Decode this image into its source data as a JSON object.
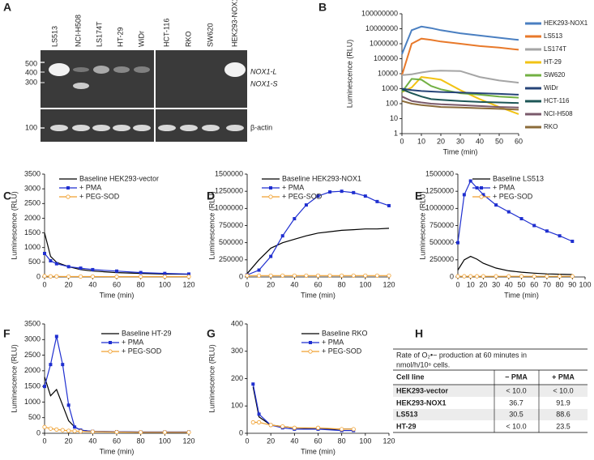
{
  "panel_labels": [
    "A",
    "B",
    "C",
    "D",
    "E",
    "F",
    "G",
    "H"
  ],
  "gel": {
    "lanes": [
      "LS513",
      "NCI-H508",
      "LS174T",
      "HT-29",
      "WiDr",
      "HCT-116",
      "RKO",
      "SW620",
      "HEK293-NOX1"
    ],
    "size_labels": [
      "500",
      "400",
      "300",
      "100"
    ],
    "band_labels": [
      "NOX1-L",
      "NOX1-S",
      "β-actin"
    ]
  },
  "chart_data": [
    {
      "type": "line",
      "log_scale": true,
      "xlabel": "Time (min)",
      "ylabel": "Luminescence (RLU)",
      "legend": "right",
      "x": [
        0,
        5,
        10,
        15,
        20,
        30,
        40,
        50,
        60
      ],
      "xlim": [
        0,
        60
      ],
      "xticks": [
        0,
        10,
        20,
        30,
        40,
        50,
        60
      ],
      "ylim": [
        1,
        100000000
      ],
      "yticks": [
        1,
        10,
        100,
        1000,
        10000,
        100000,
        1000000,
        10000000,
        100000000
      ],
      "series": [
        {
          "name": "HEK293-NOX1",
          "color": "#4a7fc1",
          "marker": null,
          "values": [
            200000,
            8000000,
            14000000,
            11000000,
            8000000,
            5000000,
            3500000,
            2500000,
            1800000
          ]
        },
        {
          "name": "LS513",
          "color": "#e8792a",
          "marker": null,
          "values": [
            8000,
            1000000,
            2200000,
            1800000,
            1400000,
            1000000,
            700000,
            550000,
            400000
          ]
        },
        {
          "name": "LS174T",
          "color": "#a5a5a5",
          "marker": null,
          "values": [
            8000,
            9000,
            12000,
            15000,
            16000,
            15000,
            6000,
            3500,
            2500
          ]
        },
        {
          "name": "HT-29",
          "color": "#f2c314",
          "marker": null,
          "values": [
            600,
            1200,
            6000,
            5000,
            4000,
            800,
            200,
            60,
            20
          ]
        },
        {
          "name": "SW620",
          "color": "#72b043",
          "marker": null,
          "values": [
            600,
            4500,
            4000,
            1500,
            900,
            500,
            400,
            300,
            250
          ]
        },
        {
          "name": "WiDr",
          "color": "#264478",
          "marker": null,
          "values": [
            1000,
            800,
            700,
            650,
            600,
            550,
            500,
            450,
            400
          ]
        },
        {
          "name": "HCT-116",
          "color": "#1d5656",
          "marker": null,
          "values": [
            900,
            500,
            300,
            200,
            180,
            150,
            130,
            120,
            110
          ]
        },
        {
          "name": "NCI-H508",
          "color": "#7a5a6b",
          "marker": null,
          "values": [
            300,
            150,
            120,
            100,
            90,
            80,
            70,
            60,
            55
          ]
        },
        {
          "name": "RKO",
          "color": "#8b6b3a",
          "marker": null,
          "values": [
            150,
            100,
            80,
            70,
            60,
            55,
            50,
            45,
            40
          ]
        }
      ]
    },
    {
      "type": "line",
      "xlabel": "Time (min)",
      "ylabel": "Luminescence (RLU)",
      "legend": "upper left",
      "x": [
        0,
        5,
        10,
        20,
        30,
        40,
        60,
        80,
        100,
        120
      ],
      "xlim": [
        0,
        120
      ],
      "xticks": [
        0,
        20,
        40,
        60,
        80,
        100,
        120
      ],
      "ylim": [
        0,
        3500
      ],
      "yticks": [
        0,
        500,
        1000,
        1500,
        2000,
        2500,
        3000,
        3500
      ],
      "series": [
        {
          "name": "Baseline HEK293-vector",
          "color": "#000000",
          "marker": null,
          "values": [
            1500,
            700,
            500,
            350,
            250,
            200,
            150,
            120,
            100,
            90
          ]
        },
        {
          "name": "+ PMA",
          "color": "#1f2fd0",
          "marker": "square",
          "values": [
            800,
            550,
            450,
            350,
            300,
            250,
            200,
            150,
            120,
            100
          ]
        },
        {
          "name": "+ PEG-SOD",
          "color": "#f0a030",
          "marker": "open-circle",
          "values": [
            30,
            20,
            20,
            15,
            15,
            15,
            10,
            10,
            10,
            10
          ]
        }
      ]
    },
    {
      "type": "line",
      "xlabel": "Time (min)",
      "ylabel": "Luminescence (RLU)",
      "legend": "upper left",
      "x": [
        0,
        10,
        20,
        30,
        40,
        50,
        60,
        70,
        80,
        90,
        100,
        110,
        120
      ],
      "xlim": [
        0,
        120
      ],
      "xticks": [
        0,
        20,
        40,
        60,
        80,
        100,
        120
      ],
      "ylim": [
        0,
        1500000
      ],
      "yticks": [
        0,
        250000,
        500000,
        750000,
        1000000,
        1250000,
        1500000
      ],
      "series": [
        {
          "name": "Baseline HEK293-NOX1",
          "color": "#000000",
          "marker": null,
          "values": [
            50000,
            250000,
            420000,
            500000,
            550000,
            600000,
            640000,
            660000,
            680000,
            690000,
            700000,
            700000,
            710000
          ]
        },
        {
          "name": "+ PMA",
          "color": "#1f2fd0",
          "marker": "square",
          "values": [
            30000,
            100000,
            300000,
            600000,
            850000,
            1050000,
            1180000,
            1240000,
            1250000,
            1230000,
            1180000,
            1100000,
            1040000
          ]
        },
        {
          "name": "+ PEG-SOD",
          "color": "#f0a030",
          "marker": "open-circle",
          "values": [
            20000,
            20000,
            20000,
            20000,
            20000,
            20000,
            20000,
            20000,
            20000,
            20000,
            20000,
            20000,
            20000
          ]
        }
      ]
    },
    {
      "type": "line",
      "xlabel": "Time (min)",
      "ylabel": "Luminescence (RLU)",
      "legend": "upper left",
      "x": [
        0,
        5,
        10,
        15,
        20,
        30,
        40,
        50,
        60,
        70,
        80,
        90
      ],
      "xlim": [
        0,
        100
      ],
      "xticks": [
        0,
        10,
        20,
        30,
        40,
        50,
        60,
        70,
        80,
        90,
        100
      ],
      "ylim": [
        0,
        1500000
      ],
      "yticks": [
        0,
        250000,
        500000,
        750000,
        1000000,
        1250000,
        1500000
      ],
      "series": [
        {
          "name": "Baseline LS513",
          "color": "#000000",
          "marker": null,
          "values": [
            100000,
            250000,
            300000,
            260000,
            200000,
            130000,
            90000,
            70000,
            55000,
            45000,
            40000,
            35000
          ]
        },
        {
          "name": "+ PMA",
          "color": "#1f2fd0",
          "marker": "square",
          "values": [
            500000,
            1200000,
            1400000,
            1300000,
            1200000,
            1050000,
            950000,
            850000,
            750000,
            670000,
            600000,
            520000
          ]
        },
        {
          "name": "+ PEG-SOD",
          "color": "#f0a030",
          "marker": "open-circle",
          "values": [
            10000,
            10000,
            10000,
            10000,
            10000,
            10000,
            10000,
            10000,
            10000,
            10000,
            10000,
            10000
          ]
        }
      ]
    },
    {
      "type": "line",
      "xlabel": "Time (min)",
      "ylabel": "Luminescence (RLU)",
      "legend": "upper right",
      "x": [
        0,
        5,
        10,
        15,
        20,
        25,
        30,
        40,
        60,
        80,
        100,
        120
      ],
      "xlim": [
        0,
        120
      ],
      "xticks": [
        0,
        20,
        40,
        60,
        80,
        100,
        120
      ],
      "ylim": [
        0,
        3500
      ],
      "yticks": [
        0,
        500,
        1000,
        1500,
        2000,
        2500,
        3000,
        3500
      ],
      "series": [
        {
          "name": "Baseline HT-29",
          "color": "#000000",
          "marker": null,
          "values": [
            1800,
            1200,
            1400,
            900,
            400,
            200,
            100,
            60,
            50,
            40,
            40,
            40
          ]
        },
        {
          "name": "+ PMA",
          "color": "#1f2fd0",
          "marker": "square",
          "values": [
            1500,
            2200,
            3100,
            2200,
            900,
            200,
            100,
            60,
            50,
            40,
            40,
            40
          ]
        },
        {
          "name": "+ PEG-SOD",
          "color": "#f0a030",
          "marker": "open-circle",
          "values": [
            200,
            150,
            120,
            100,
            80,
            70,
            60,
            50,
            40,
            30,
            30,
            30
          ]
        }
      ]
    },
    {
      "type": "line",
      "xlabel": "Time (min)",
      "ylabel": "Luminescence (RLU)",
      "legend": "upper right",
      "x": [
        5,
        10,
        20,
        30,
        40,
        60,
        80,
        90
      ],
      "xlim": [
        0,
        120
      ],
      "xticks": [
        0,
        20,
        40,
        60,
        80,
        100,
        120
      ],
      "ylim": [
        0,
        400
      ],
      "yticks": [
        0,
        100,
        200,
        300,
        400
      ],
      "series": [
        {
          "name": "Baseline RKO",
          "color": "#000000",
          "marker": null,
          "values": [
            170,
            60,
            30,
            25,
            20,
            15,
            15,
            15
          ]
        },
        {
          "name": "+ PMA",
          "color": "#1f2fd0",
          "marker": "square",
          "values": [
            180,
            70,
            30,
            20,
            15,
            15,
            10,
            10
          ]
        },
        {
          "name": "+ PEG-SOD",
          "color": "#f0a030",
          "marker": "open-circle",
          "values": [
            40,
            40,
            30,
            25,
            20,
            20,
            15,
            15
          ]
        }
      ]
    }
  ],
  "table": {
    "caption": [
      "Rate of O₂•− production at 60 minutes in",
      "nmol/h/10⁶ cells."
    ],
    "header": [
      "Cell line",
      "− PMA",
      "+ PMA"
    ],
    "rows": [
      [
        "HEK293-vector",
        "< 10.0",
        "< 10.0"
      ],
      [
        "HEK293-NOX1",
        "36.7",
        "91.9"
      ],
      [
        "LS513",
        "30.5",
        "88.6"
      ],
      [
        "HT-29",
        "< 10.0",
        "23.5"
      ]
    ]
  }
}
